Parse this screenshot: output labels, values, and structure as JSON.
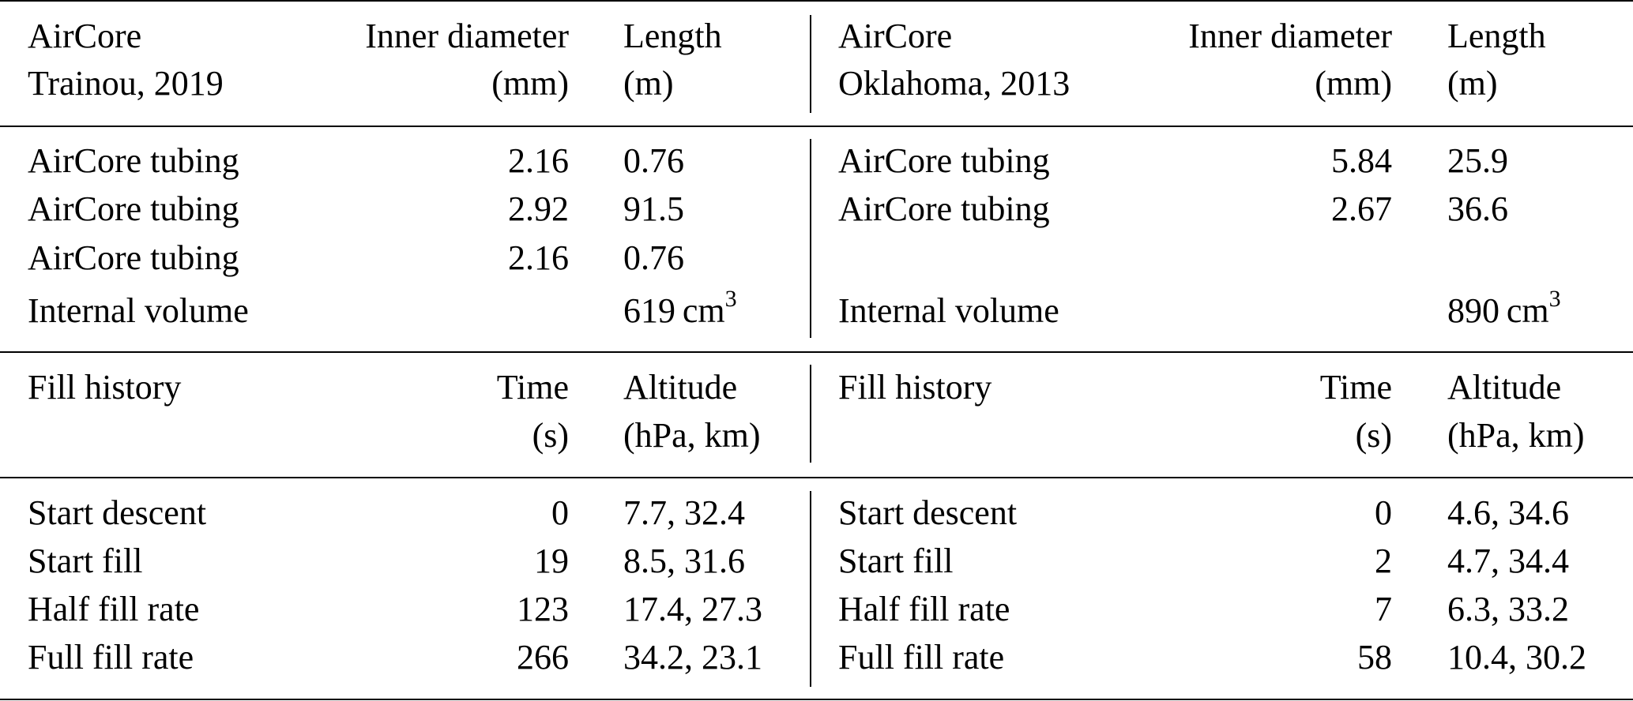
{
  "section1_header": {
    "left": {
      "col1": [
        "AirCore",
        "Trainou, 2019"
      ],
      "col2": [
        "Inner diameter",
        "(mm)"
      ],
      "col3": [
        "Length",
        "(m)"
      ]
    },
    "right": {
      "col1": [
        "AirCore",
        "Oklahoma, 2013"
      ],
      "col2": [
        "Inner diameter",
        "(mm)"
      ],
      "col3": [
        "Length",
        "(m)"
      ]
    }
  },
  "section1_rows": {
    "left": [
      {
        "label": "AirCore tubing",
        "diameter": "2.16",
        "length": "0.76"
      },
      {
        "label": "AirCore tubing",
        "diameter": "2.92",
        "length": "91.5"
      },
      {
        "label": "AirCore tubing",
        "diameter": "2.16",
        "length": "0.76"
      }
    ],
    "right": [
      {
        "label": "AirCore tubing",
        "diameter": "5.84",
        "length": "25.9"
      },
      {
        "label": "AirCore tubing",
        "diameter": "2.67",
        "length": "36.6"
      }
    ]
  },
  "internal_volume": {
    "left": {
      "label": "Internal volume",
      "value": "619",
      "unit": "cm",
      "exponent": "3"
    },
    "right": {
      "label": "Internal volume",
      "value": "890",
      "unit": "cm",
      "exponent": "3"
    }
  },
  "section2_header": {
    "left": {
      "col1": "Fill history",
      "col2": [
        "Time",
        "(s)"
      ],
      "col3": [
        "Altitude",
        "(hPa, km)"
      ]
    },
    "right": {
      "col1": "Fill history",
      "col2": [
        "Time",
        "(s)"
      ],
      "col3": [
        "Altitude",
        "(hPa, km)"
      ]
    }
  },
  "section2_rows": {
    "left": [
      {
        "label": "Start descent",
        "time": "0",
        "altitude": "7.7, 32.4"
      },
      {
        "label": "Start fill",
        "time": "19",
        "altitude": "8.5, 31.6"
      },
      {
        "label": "Half fill rate",
        "time": "123",
        "altitude": "17.4, 27.3"
      },
      {
        "label": "Full fill rate",
        "time": "266",
        "altitude": "34.2, 23.1"
      }
    ],
    "right": [
      {
        "label": "Start descent",
        "time": "0",
        "altitude": "4.6, 34.6"
      },
      {
        "label": "Start fill",
        "time": "2",
        "altitude": "4.7, 34.4"
      },
      {
        "label": "Half fill rate",
        "time": "7",
        "altitude": "6.3, 33.2"
      },
      {
        "label": "Full fill rate",
        "time": "58",
        "altitude": "10.4, 30.2"
      }
    ]
  }
}
